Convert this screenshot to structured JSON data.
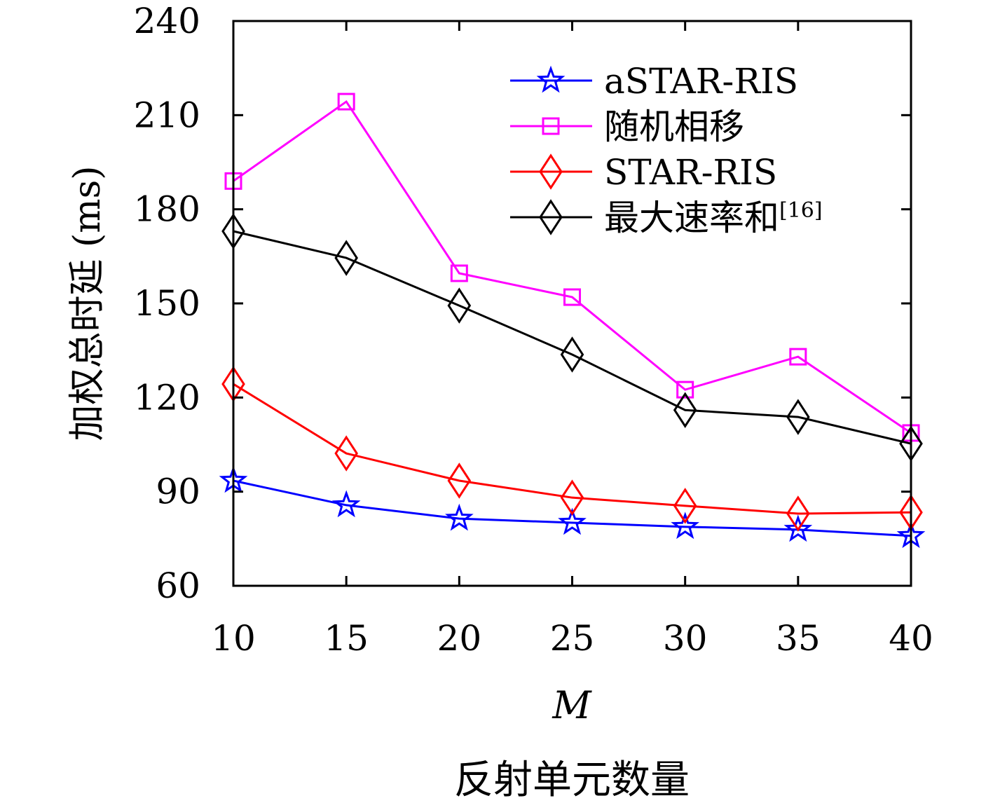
{
  "chart_data": {
    "type": "line",
    "xlabel": "M",
    "xlabel_sub": "反射单元数量",
    "ylabel": "加权总时延 (ms)",
    "x": [
      10,
      15,
      20,
      25,
      30,
      35,
      40
    ],
    "xlim": [
      10,
      40
    ],
    "ylim": [
      60,
      240
    ],
    "xticks": [
      "10",
      "15",
      "20",
      "25",
      "30",
      "35",
      "40"
    ],
    "yticks": [
      "60",
      "90",
      "120",
      "150",
      "180",
      "210",
      "240"
    ],
    "grid": false,
    "legend_position": "top-right",
    "series": [
      {
        "name": "aSTAR-RIS",
        "ref": "",
        "color": "#0000ff",
        "marker": "star",
        "values": [
          93.5,
          85.7,
          81.4,
          80.1,
          78.8,
          77.9,
          75.9
        ]
      },
      {
        "name": "随机相移",
        "ref": "",
        "color": "#ff00ff",
        "marker": "square",
        "values": [
          189,
          214.3,
          159.6,
          152,
          122.5,
          133,
          108.7
        ]
      },
      {
        "name": "STAR-RIS",
        "ref": "",
        "color": "#ff0000",
        "marker": "diamond",
        "values": [
          124.3,
          102.2,
          93.5,
          88.1,
          85.5,
          83,
          83.4
        ]
      },
      {
        "name": "最大速率和",
        "ref": "[16]",
        "color": "#000000",
        "marker": "diamond",
        "values": [
          173,
          164.5,
          149.3,
          133.7,
          116,
          113.8,
          105.3
        ]
      }
    ]
  }
}
